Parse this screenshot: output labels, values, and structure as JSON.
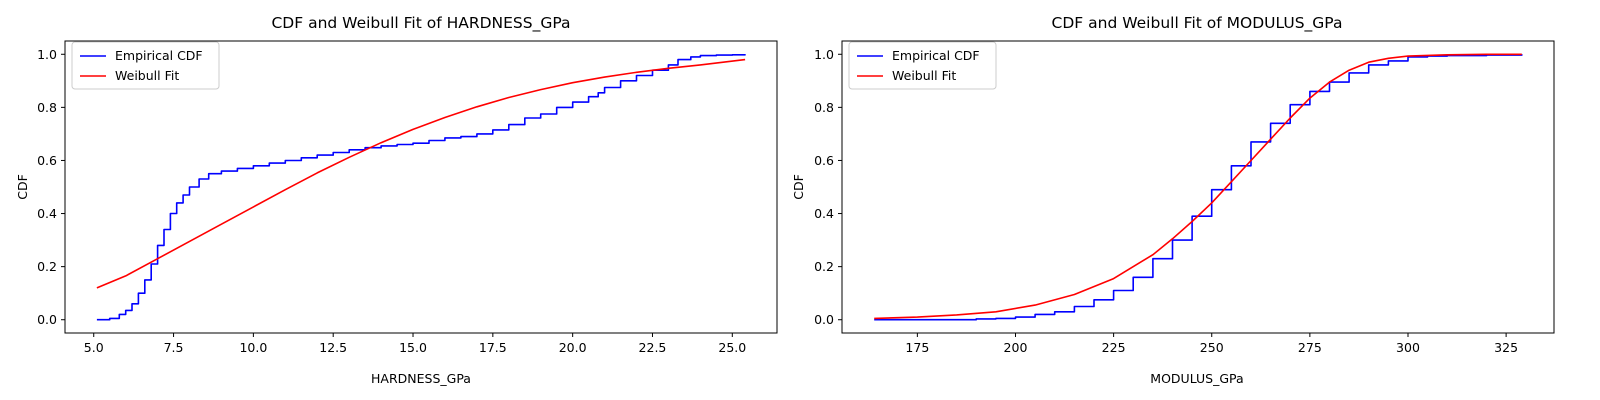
{
  "chart_data": [
    {
      "type": "line",
      "title": "CDF and Weibull Fit of HARDNESS_GPa",
      "xlabel": "HARDNESS_GPa",
      "ylabel": "CDF",
      "xlim": [
        4.1,
        26.4
      ],
      "ylim": [
        -0.05,
        1.05
      ],
      "xticks": [
        5.0,
        7.5,
        10.0,
        12.5,
        15.0,
        17.5,
        20.0,
        22.5,
        25.0
      ],
      "xtick_labels": [
        "5.0",
        "7.5",
        "10.0",
        "12.5",
        "15.0",
        "17.5",
        "20.0",
        "22.5",
        "25.0"
      ],
      "yticks": [
        0.0,
        0.2,
        0.4,
        0.6,
        0.8,
        1.0
      ],
      "ytick_labels": [
        "0.0",
        "0.2",
        "0.4",
        "0.6",
        "0.8",
        "1.0"
      ],
      "grid": false,
      "legend": "upper-left",
      "series": [
        {
          "name": "Empirical CDF",
          "color": "#0000ff",
          "x": [
            5.1,
            5.5,
            5.8,
            6.0,
            6.2,
            6.4,
            6.6,
            6.8,
            7.0,
            7.2,
            7.4,
            7.6,
            7.8,
            8.0,
            8.3,
            8.6,
            9.0,
            9.5,
            10.0,
            10.5,
            11.0,
            11.5,
            12.0,
            12.5,
            13.0,
            13.5,
            14.0,
            14.5,
            15.0,
            15.5,
            16.0,
            16.5,
            17.0,
            17.5,
            18.0,
            18.5,
            19.0,
            19.5,
            20.0,
            20.5,
            20.8,
            21.0,
            21.5,
            22.0,
            22.5,
            23.0,
            23.3,
            23.7,
            24.0,
            24.5,
            25.0,
            25.4
          ],
          "y": [
            0.0,
            0.005,
            0.02,
            0.035,
            0.06,
            0.1,
            0.15,
            0.21,
            0.28,
            0.34,
            0.4,
            0.44,
            0.47,
            0.5,
            0.53,
            0.55,
            0.56,
            0.57,
            0.58,
            0.59,
            0.6,
            0.61,
            0.62,
            0.63,
            0.64,
            0.648,
            0.655,
            0.66,
            0.665,
            0.675,
            0.685,
            0.69,
            0.7,
            0.715,
            0.735,
            0.76,
            0.775,
            0.8,
            0.82,
            0.84,
            0.855,
            0.875,
            0.9,
            0.92,
            0.94,
            0.96,
            0.98,
            0.99,
            0.995,
            0.997,
            0.998,
            1.0
          ]
        },
        {
          "name": "Weibull Fit",
          "color": "#ff0000",
          "x": [
            5.1,
            6.0,
            7.0,
            8.0,
            9.0,
            10.0,
            11.0,
            12.0,
            13.0,
            14.0,
            15.0,
            16.0,
            17.0,
            18.0,
            19.0,
            20.0,
            21.0,
            22.0,
            23.0,
            24.0,
            25.4
          ],
          "y": [
            0.12,
            0.165,
            0.23,
            0.295,
            0.36,
            0.425,
            0.49,
            0.553,
            0.612,
            0.667,
            0.717,
            0.762,
            0.802,
            0.837,
            0.867,
            0.893,
            0.914,
            0.932,
            0.947,
            0.96,
            0.98
          ]
        }
      ]
    },
    {
      "type": "line",
      "title": "CDF and Weibull Fit of MODULUS_GPa",
      "xlabel": "MODULUS_GPa",
      "ylabel": "CDF",
      "xlim": [
        155.8,
        337.2
      ],
      "ylim": [
        -0.05,
        1.05
      ],
      "xticks": [
        175,
        200,
        225,
        250,
        275,
        300,
        325
      ],
      "xtick_labels": [
        "175",
        "200",
        "225",
        "250",
        "275",
        "300",
        "325"
      ],
      "yticks": [
        0.0,
        0.2,
        0.4,
        0.6,
        0.8,
        1.0
      ],
      "ytick_labels": [
        "0.0",
        "0.2",
        "0.4",
        "0.6",
        "0.8",
        "1.0"
      ],
      "grid": false,
      "legend": "upper-left",
      "series": [
        {
          "name": "Empirical CDF",
          "color": "#0000ff",
          "x": [
            164,
            180,
            190,
            195,
            200,
            205,
            210,
            215,
            220,
            225,
            230,
            235,
            240,
            245,
            250,
            255,
            260,
            265,
            270,
            275,
            280,
            285,
            290,
            295,
            300,
            305,
            310,
            320,
            329
          ],
          "y": [
            0.0,
            0.0,
            0.003,
            0.005,
            0.01,
            0.02,
            0.03,
            0.05,
            0.075,
            0.11,
            0.16,
            0.23,
            0.3,
            0.39,
            0.49,
            0.58,
            0.67,
            0.74,
            0.81,
            0.86,
            0.895,
            0.93,
            0.96,
            0.975,
            0.99,
            0.993,
            0.995,
            0.997,
            1.0
          ]
        },
        {
          "name": "Weibull Fit",
          "color": "#ff0000",
          "x": [
            164,
            175,
            185,
            195,
            205,
            215,
            225,
            235,
            240,
            245,
            250,
            255,
            260,
            265,
            270,
            275,
            280,
            285,
            290,
            295,
            300,
            310,
            320,
            329
          ],
          "y": [
            0.005,
            0.01,
            0.018,
            0.03,
            0.055,
            0.095,
            0.155,
            0.245,
            0.305,
            0.37,
            0.44,
            0.52,
            0.6,
            0.68,
            0.76,
            0.835,
            0.895,
            0.94,
            0.97,
            0.985,
            0.993,
            0.998,
            1.0,
            1.0
          ]
        }
      ]
    }
  ]
}
